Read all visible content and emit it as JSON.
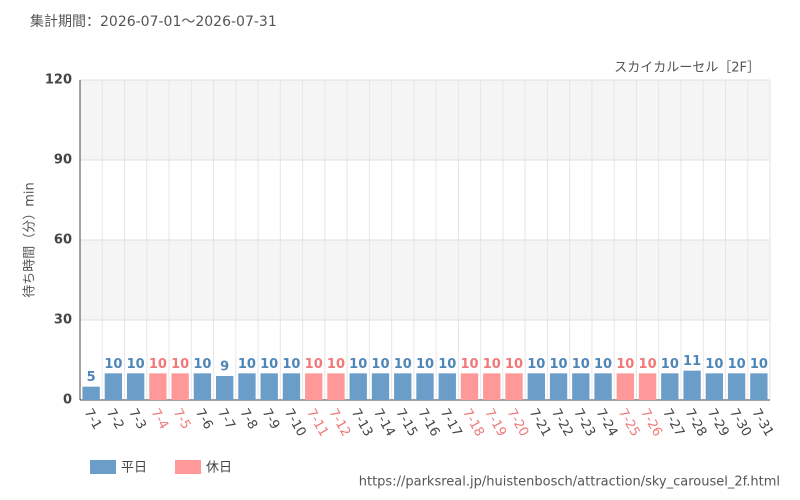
{
  "chart_data": {
    "type": "bar",
    "title": "集計期間：2026-07-01～2026-07-31",
    "subtitle": "スカイカルーセル［2F］",
    "y_label": "待ち時間（分）min",
    "source": "https://parksreal.jp/huistenbosch/attraction/sky_carousel_2f.html",
    "categories": [
      "7-1",
      "7-2",
      "7-3",
      "7-4",
      "7-5",
      "7-6",
      "7-7",
      "7-8",
      "7-9",
      "7-10",
      "7-11",
      "7-12",
      "7-13",
      "7-14",
      "7-15",
      "7-16",
      "7-17",
      "7-18",
      "7-19",
      "7-20",
      "7-21",
      "7-22",
      "7-23",
      "7-24",
      "7-25",
      "7-26",
      "7-27",
      "7-28",
      "7-29",
      "7-30",
      "7-31"
    ],
    "series": [
      {
        "name": "平日",
        "color": "#6a9ec9",
        "label_color": "#4f86b8",
        "values": [
          5,
          10,
          10,
          null,
          null,
          10,
          9,
          10,
          10,
          10,
          null,
          null,
          10,
          10,
          10,
          10,
          10,
          null,
          null,
          null,
          10,
          10,
          10,
          10,
          null,
          null,
          10,
          11,
          10,
          10,
          10
        ]
      },
      {
        "name": "休日",
        "color": "#ff9999",
        "label_color": "#f07878",
        "values": [
          null,
          null,
          null,
          10,
          10,
          null,
          null,
          null,
          null,
          null,
          10,
          10,
          null,
          null,
          null,
          null,
          null,
          10,
          10,
          10,
          null,
          null,
          null,
          null,
          10,
          10,
          null,
          null,
          null,
          null,
          null
        ]
      }
    ],
    "ylim": [
      0,
      120
    ],
    "yticks": [
      0,
      30,
      60,
      90,
      120
    ],
    "grid": true
  }
}
